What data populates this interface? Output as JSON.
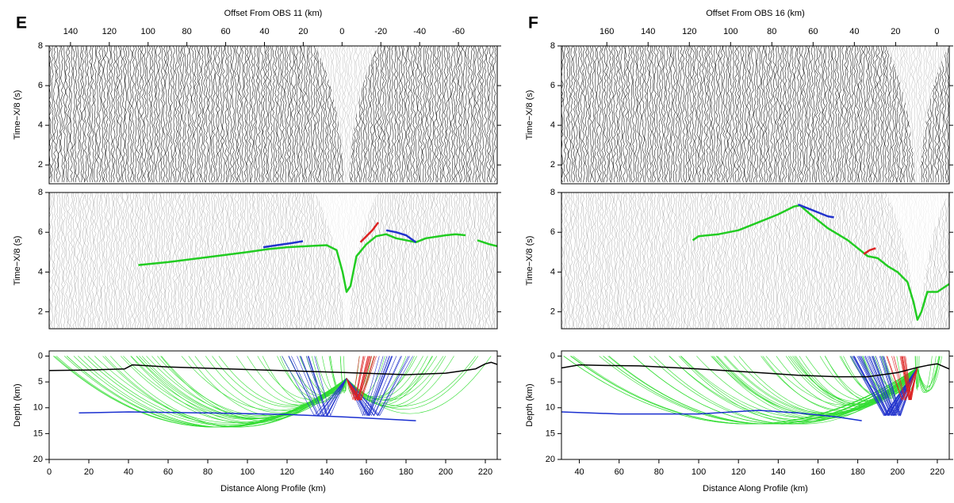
{
  "chart_data": [
    {
      "type": "line",
      "panel_label": "E",
      "x2_label": "Offset From OBS 11 (km)",
      "x2lim": [
        151,
        -80
      ],
      "x2ticks": [
        140,
        120,
        100,
        80,
        60,
        40,
        20,
        0,
        -20,
        -40,
        -60
      ],
      "xlabel": "Distance Along Profile (km)",
      "xlim": [
        0,
        226
      ],
      "xticks": [
        0,
        20,
        40,
        60,
        80,
        100,
        120,
        140,
        160,
        180,
        200,
        220
      ],
      "subplots": [
        {
          "ylabel": "Time−X/8 (s)",
          "ylim": [
            1.05,
            8
          ],
          "yticks": [
            2,
            4,
            6,
            8
          ],
          "series": []
        },
        {
          "ylabel": "Time−X/8 (s)",
          "ylim": [
            1.15,
            8
          ],
          "yticks": [
            2,
            4,
            6,
            8
          ],
          "series": [
            {
              "color": "#22cc22",
              "x": [
                45,
                60,
                80,
                100,
                110,
                120,
                130,
                140,
                145,
                148,
                150,
                152,
                155,
                160,
                165,
                170,
                175,
                180,
                185,
                190,
                200,
                205,
                210,
                213,
                216,
                222,
                226
              ],
              "values": [
                4.35,
                4.5,
                4.75,
                5.0,
                5.15,
                5.25,
                5.3,
                5.35,
                5.1,
                4.0,
                3.0,
                3.3,
                4.8,
                5.4,
                5.8,
                5.9,
                5.7,
                5.6,
                5.5,
                5.7,
                5.85,
                5.9,
                5.85,
                null,
                5.6,
                5.4,
                5.3
              ]
            },
            {
              "color": "#2233cc",
              "x": [
                108,
                115,
                122,
                128
              ],
              "values": [
                5.25,
                5.35,
                5.45,
                5.55
              ]
            },
            {
              "color": "#2233cc",
              "x": [
                170,
                175,
                180,
                185
              ],
              "values": [
                6.1,
                6.0,
                5.85,
                5.5
              ]
            },
            {
              "color": "#dd2222",
              "x": [
                157,
                160,
                163,
                166
              ],
              "values": [
                5.5,
                5.8,
                6.1,
                6.5
              ]
            }
          ]
        },
        {
          "ylabel": "Depth (km)",
          "ylim": [
            20,
            -1
          ],
          "yticks": [
            0,
            5,
            10,
            15,
            20
          ],
          "series": [
            {
              "color": "#000000",
              "x": [
                0,
                20,
                38,
                42,
                60,
                100,
                150,
                180,
                200,
                215,
                220,
                223,
                226
              ],
              "values": [
                2.8,
                2.7,
                2.5,
                1.7,
                2.1,
                2.6,
                3.2,
                3.6,
                3.3,
                2.5,
                1.5,
                1.2,
                1.6
              ]
            },
            {
              "color": "#1a2fd0",
              "x": [
                15,
                40,
                80,
                120,
                150,
                185
              ],
              "values": [
                11.0,
                10.8,
                11.0,
                11.3,
                11.8,
                12.5
              ]
            }
          ]
        }
      ]
    },
    {
      "type": "line",
      "panel_label": "F",
      "x2_label": "Offset From OBS 16 (km)",
      "x2lim": [
        182,
        -6
      ],
      "x2ticks": [
        160,
        140,
        120,
        100,
        80,
        60,
        40,
        20,
        0
      ],
      "xlabel": "Distance Along Profile (km)",
      "xlim": [
        31,
        226
      ],
      "xticks": [
        40,
        60,
        80,
        100,
        120,
        140,
        160,
        180,
        200,
        220
      ],
      "subplots": [
        {
          "ylabel": "Time−X/8 (s)",
          "ylim": [
            1.05,
            8
          ],
          "yticks": [
            2,
            4,
            6,
            8
          ],
          "series": []
        },
        {
          "ylabel": "Time−X/8 (s)",
          "ylim": [
            1.15,
            8
          ],
          "yticks": [
            2,
            4,
            6,
            8
          ],
          "series": [
            {
              "color": "#22cc22",
              "x": [
                97,
                100,
                110,
                120,
                130,
                140,
                148,
                151,
                155,
                160,
                165,
                170,
                175,
                180,
                185,
                190,
                195,
                200,
                205,
                208,
                210,
                212,
                215,
                220,
                226
              ],
              "values": [
                5.6,
                5.8,
                5.9,
                6.1,
                6.5,
                6.9,
                7.3,
                7.35,
                7.0,
                6.6,
                6.2,
                5.9,
                5.6,
                5.2,
                4.8,
                4.7,
                4.3,
                4.0,
                3.5,
                2.5,
                1.6,
                2.0,
                3.0,
                3.0,
                3.4
              ]
            },
            {
              "color": "#2233cc",
              "x": [
                150,
                155,
                160,
                165,
                168
              ],
              "values": [
                7.4,
                7.2,
                7.0,
                6.8,
                6.75
              ]
            },
            {
              "color": "#dd2222",
              "x": [
                183,
                186,
                189
              ],
              "values": [
                4.9,
                5.1,
                5.2
              ]
            }
          ]
        },
        {
          "ylabel": "Depth (km)",
          "ylim": [
            20,
            -1
          ],
          "yticks": [
            0,
            5,
            10,
            15,
            20
          ],
          "series": [
            {
              "color": "#000000",
              "x": [
                31,
                40,
                50,
                70,
                100,
                130,
                150,
                170,
                185,
                200,
                210,
                215,
                220,
                226
              ],
              "values": [
                2.3,
                1.7,
                1.8,
                1.9,
                2.5,
                3.2,
                3.7,
                4.0,
                4.0,
                3.2,
                2.2,
                1.8,
                1.5,
                2.5
              ]
            },
            {
              "color": "#1a2fd0",
              "x": [
                31,
                60,
                100,
                130,
                150,
                170,
                182
              ],
              "values": [
                10.8,
                11.2,
                11.2,
                10.5,
                11.0,
                11.8,
                12.5
              ]
            }
          ]
        }
      ]
    }
  ]
}
